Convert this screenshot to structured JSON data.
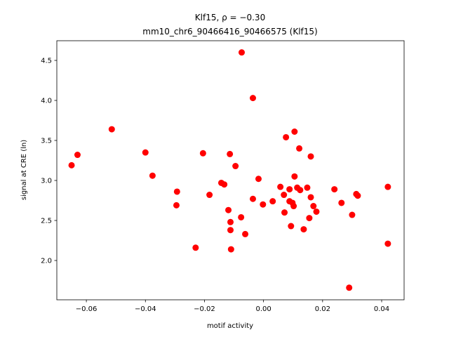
{
  "chart_data": {
    "type": "scatter",
    "title_line1": "Klf15, ρ = −0.30",
    "title_line2": "mm10_chr6_90466416_90466575 (Klf15)",
    "xlabel": "motif activity",
    "ylabel": "signal at CRE (ln)",
    "xlim": [
      -0.07,
      0.0476
    ],
    "ylim": [
      1.509,
      4.746
    ],
    "xticks": [
      -0.06,
      -0.04,
      -0.02,
      0.0,
      0.02,
      0.04
    ],
    "xtick_labels": [
      "−0.06",
      "−0.04",
      "−0.02",
      "0.00",
      "0.02",
      "0.04"
    ],
    "yticks": [
      2.0,
      2.5,
      3.0,
      3.5,
      4.0,
      4.5
    ],
    "ytick_labels": [
      "2.0",
      "2.5",
      "3.0",
      "3.5",
      "4.0",
      "4.5"
    ],
    "marker_color": "#ff0000",
    "points": [
      [
        -0.065,
        3.19
      ],
      [
        -0.063,
        3.32
      ],
      [
        -0.0514,
        3.64
      ],
      [
        -0.04,
        3.35
      ],
      [
        -0.0376,
        3.06
      ],
      [
        -0.0293,
        2.86
      ],
      [
        -0.0295,
        2.69
      ],
      [
        -0.023,
        2.16
      ],
      [
        -0.0205,
        3.34
      ],
      [
        -0.0183,
        2.82
      ],
      [
        -0.0143,
        2.97
      ],
      [
        -0.0133,
        2.95
      ],
      [
        -0.0119,
        2.63
      ],
      [
        -0.0114,
        3.33
      ],
      [
        -0.0112,
        2.48
      ],
      [
        -0.0112,
        2.38
      ],
      [
        -0.011,
        2.14
      ],
      [
        -0.0095,
        3.18
      ],
      [
        -0.0076,
        2.54
      ],
      [
        -0.0074,
        4.6
      ],
      [
        -0.0062,
        2.33
      ],
      [
        -0.0036,
        4.03
      ],
      [
        -0.0036,
        2.77
      ],
      [
        -0.0017,
        3.02
      ],
      [
        -0.0002,
        2.7
      ],
      [
        0.0031,
        2.74
      ],
      [
        0.0057,
        2.92
      ],
      [
        0.0069,
        2.82
      ],
      [
        0.0071,
        2.6
      ],
      [
        0.0076,
        3.54
      ],
      [
        0.0088,
        2.89
      ],
      [
        0.0088,
        2.74
      ],
      [
        0.0093,
        2.43
      ],
      [
        0.0098,
        2.72
      ],
      [
        0.0102,
        2.68
      ],
      [
        0.0105,
        3.05
      ],
      [
        0.0105,
        3.61
      ],
      [
        0.0114,
        2.91
      ],
      [
        0.0121,
        3.4
      ],
      [
        0.0124,
        2.88
      ],
      [
        0.0136,
        2.39
      ],
      [
        0.0148,
        2.91
      ],
      [
        0.0155,
        2.53
      ],
      [
        0.016,
        3.3
      ],
      [
        0.016,
        2.79
      ],
      [
        0.0169,
        2.68
      ],
      [
        0.0179,
        2.61
      ],
      [
        0.024,
        2.89
      ],
      [
        0.0264,
        2.72
      ],
      [
        0.029,
        1.66
      ],
      [
        0.03,
        2.57
      ],
      [
        0.0314,
        2.83
      ],
      [
        0.0319,
        2.81
      ],
      [
        0.0421,
        2.92
      ],
      [
        0.0421,
        2.21
      ]
    ]
  }
}
